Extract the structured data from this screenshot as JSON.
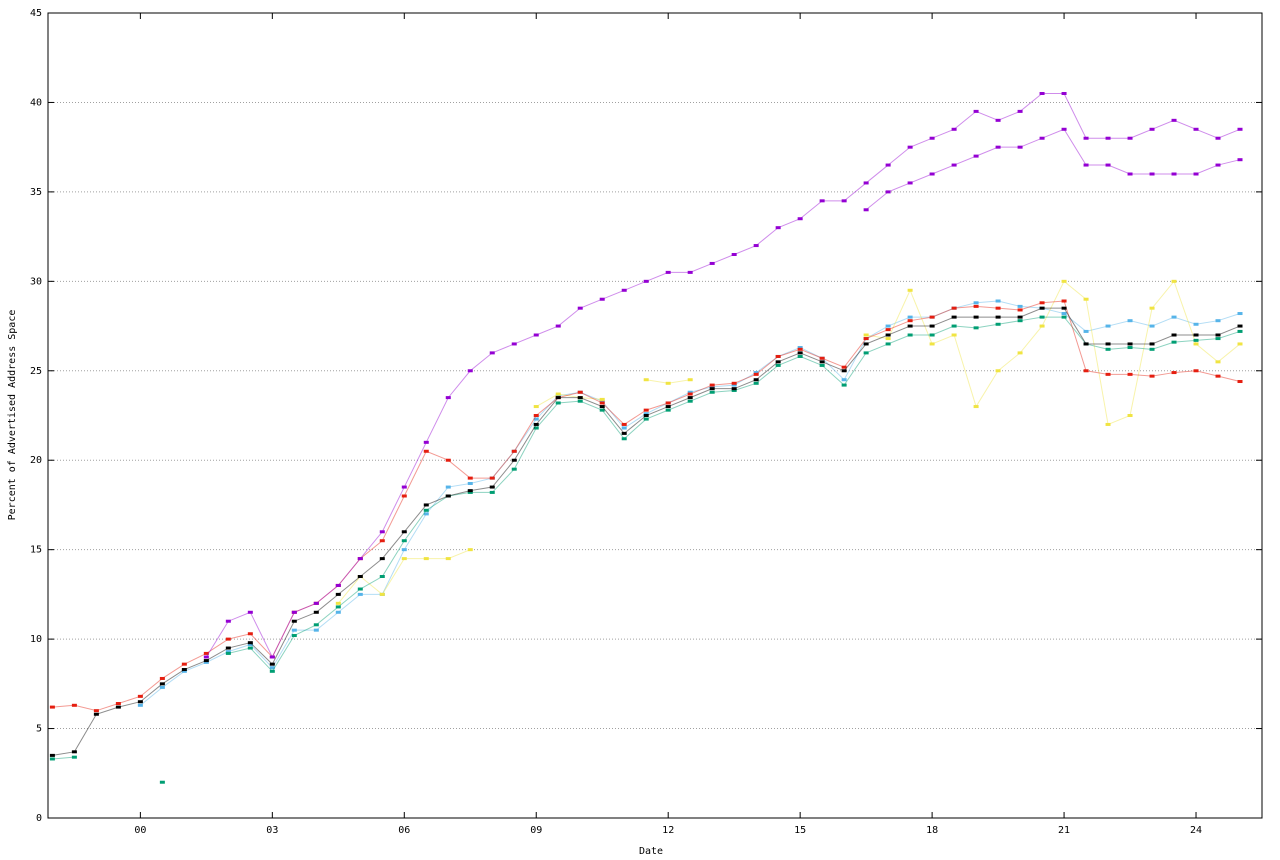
{
  "chart_data": {
    "type": "scatter",
    "x_label": "Date",
    "y_label": "Percent of Advertised Address Space",
    "x": [
      -2,
      -1.5,
      -1,
      -0.5,
      0,
      0.5,
      1,
      1.5,
      2,
      2.5,
      3,
      3.5,
      4,
      4.5,
      5,
      5.5,
      6,
      6.5,
      7,
      7.5,
      8,
      8.5,
      9,
      9.5,
      10,
      10.5,
      11,
      11.5,
      12,
      12.5,
      13,
      13.5,
      14,
      14.5,
      15,
      15.5,
      16,
      16.5,
      17,
      17.5,
      18,
      18.5,
      19,
      19.5,
      20,
      20.5,
      21,
      21.5,
      22,
      22.5,
      23,
      23.5,
      24,
      24.5,
      25
    ],
    "xlim": [
      -2.1,
      25.5
    ],
    "ylim": [
      0,
      45
    ],
    "xticks": [
      {
        "value": 0,
        "label": "00"
      },
      {
        "value": 3,
        "label": "03"
      },
      {
        "value": 6,
        "label": "06"
      },
      {
        "value": 9,
        "label": "09"
      },
      12,
      15,
      18,
      21,
      24
    ],
    "yticks": [
      0,
      5,
      10,
      15,
      20,
      25,
      30,
      35,
      40,
      45
    ],
    "grid": true,
    "series": [
      {
        "color": "#56b4e9",
        "values": [
          null,
          null,
          null,
          null,
          6.3,
          7.3,
          8.2,
          8.7,
          9.3,
          9.7,
          8.4,
          10.5,
          10.5,
          11.5,
          12.5,
          12.5,
          15,
          17,
          18.5,
          18.7,
          19,
          20.5,
          22.3,
          23.6,
          23.8,
          23.3,
          21.8,
          22.6,
          23.2,
          23.8,
          24.1,
          24.2,
          24.9,
          25.8,
          26.3,
          25.7,
          24.5,
          26.8,
          27.5,
          28,
          28,
          28.5,
          28.8,
          28.9,
          28.6,
          28.5,
          28.2,
          27.2,
          27.5,
          27.8,
          27.5,
          28,
          27.6,
          27.8,
          28.2
        ]
      },
      {
        "color": "#f0e442",
        "values": [
          null,
          null,
          null,
          null,
          null,
          null,
          null,
          null,
          null,
          null,
          null,
          null,
          null,
          12,
          13.5,
          12.5,
          14.5,
          14.5,
          14.5,
          15,
          null,
          null,
          23,
          23.7,
          23.5,
          23.4,
          null,
          24.5,
          24.3,
          24.5,
          null,
          null,
          null,
          null,
          null,
          null,
          null,
          27,
          26.8,
          29.5,
          26.5,
          27,
          23,
          25,
          26,
          27.5,
          30,
          29,
          22,
          22.5,
          28.5,
          30,
          26.5,
          25.5,
          26.5
        ]
      },
      {
        "color": "#009e73",
        "values": [
          3.3,
          3.4,
          null,
          null,
          null,
          2,
          null,
          null,
          9.2,
          9.5,
          8.2,
          10.2,
          10.8,
          11.8,
          12.8,
          13.5,
          15.5,
          17.2,
          18,
          18.2,
          18.2,
          19.5,
          21.8,
          23.2,
          23.3,
          22.8,
          21.2,
          22.3,
          22.8,
          23.3,
          23.8,
          23.9,
          24.3,
          25.3,
          25.8,
          25.3,
          24.2,
          26,
          26.5,
          27,
          27,
          27.5,
          27.4,
          27.6,
          27.8,
          28,
          28,
          26.5,
          26.2,
          26.3,
          26.2,
          26.6,
          26.7,
          26.8,
          27.2
        ]
      },
      {
        "color": "#e51e10",
        "values": [
          6.2,
          6.3,
          6,
          6.4,
          6.8,
          7.8,
          8.6,
          9.2,
          10,
          10.3,
          9,
          11.5,
          12,
          13,
          14.5,
          15.5,
          18,
          20.5,
          20,
          19,
          19,
          20.5,
          22.5,
          23.5,
          23.8,
          23.2,
          22,
          22.8,
          23.2,
          23.7,
          24.2,
          24.3,
          24.8,
          25.8,
          26.2,
          25.7,
          25.2,
          26.8,
          27.3,
          27.8,
          28,
          28.5,
          28.6,
          28.5,
          28.4,
          28.8,
          28.9,
          25,
          24.8,
          24.8,
          24.7,
          24.9,
          25,
          24.7,
          24.4
        ]
      },
      {
        "color": "#000000",
        "values": [
          3.5,
          3.7,
          5.8,
          6.2,
          6.5,
          7.5,
          8.3,
          8.8,
          9.5,
          9.8,
          8.6,
          11,
          11.5,
          12.5,
          13.5,
          14.5,
          16,
          17.5,
          18,
          18.3,
          18.5,
          20,
          22,
          23.5,
          23.5,
          23,
          21.5,
          22.5,
          23,
          23.5,
          24,
          24,
          24.5,
          25.5,
          26,
          25.5,
          25,
          26.5,
          27,
          27.5,
          27.5,
          28,
          28,
          28,
          28,
          28.5,
          28.5,
          26.5,
          26.5,
          26.5,
          26.5,
          27,
          27,
          27,
          27.5
        ]
      },
      {
        "color": "#9400d3",
        "values": [
          null,
          null,
          null,
          null,
          null,
          null,
          null,
          9,
          11,
          11.5,
          9,
          11.5,
          12,
          13,
          14.5,
          16,
          18.5,
          21,
          23.5,
          25,
          26,
          26.5,
          27,
          27.5,
          28.5,
          29,
          29.5,
          30,
          30.5,
          30.5,
          31,
          31.5,
          32,
          33,
          33.5,
          34.5,
          34.5,
          35.5,
          36.5,
          37.5,
          38,
          38.5,
          39.5,
          39,
          39.5,
          40.5,
          40.5,
          38,
          38,
          38,
          38.5,
          39,
          38.5,
          38,
          38.5
        ]
      },
      {
        "color": "#9400d3",
        "values": [
          null,
          null,
          null,
          null,
          null,
          null,
          null,
          null,
          null,
          null,
          null,
          null,
          null,
          null,
          null,
          null,
          null,
          null,
          null,
          null,
          null,
          null,
          null,
          null,
          null,
          null,
          null,
          null,
          null,
          null,
          null,
          null,
          null,
          null,
          null,
          null,
          null,
          34,
          35,
          35.5,
          36,
          36.5,
          37,
          37.5,
          37.5,
          38,
          38.5,
          36.5,
          36.5,
          36,
          36,
          36,
          36,
          36.5,
          36.8
        ]
      }
    ]
  }
}
